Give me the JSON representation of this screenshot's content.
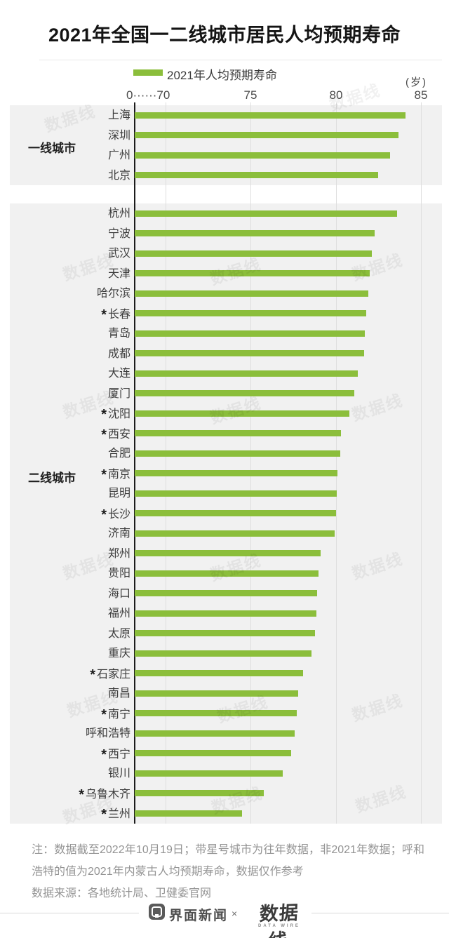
{
  "title": "2021年全国一二线城市居民人均预期寿命",
  "legend": {
    "label": "2021年人均预期寿命",
    "color": "#8BBE3B"
  },
  "axis": {
    "unit_label": "(岁)",
    "tick_labels": [
      "0······70",
      "75",
      "80",
      "85"
    ]
  },
  "watermark_text": "数据线",
  "chart_data": {
    "type": "bar",
    "orientation": "horizontal",
    "title": "2021年全国一二线城市居民人均预期寿命",
    "legend": [
      "2021年人均预期寿命"
    ],
    "unit": "岁",
    "ticks": [
      70,
      75,
      80,
      85
    ],
    "axis_break_label": "0······70",
    "xlim_display": [
      70,
      85
    ],
    "grid": true,
    "bar_color": "#8BBE3B",
    "star_meaning": "带星号城市为往年数据，非2021年数据",
    "groups": [
      {
        "name": "一线城市",
        "cities": [
          {
            "name": "上海",
            "value": 84.1,
            "star": false
          },
          {
            "name": "深圳",
            "value": 83.7,
            "star": false
          },
          {
            "name": "广州",
            "value": 83.2,
            "star": false
          },
          {
            "name": "北京",
            "value": 82.5,
            "star": false
          }
        ]
      },
      {
        "name": "二线城市",
        "cities": [
          {
            "name": "杭州",
            "value": 83.6,
            "star": false
          },
          {
            "name": "宁波",
            "value": 82.3,
            "star": false
          },
          {
            "name": "武汉",
            "value": 82.1,
            "star": false
          },
          {
            "name": "天津",
            "value": 82.0,
            "star": false
          },
          {
            "name": "哈尔滨",
            "value": 81.9,
            "star": false
          },
          {
            "name": "长春",
            "value": 81.8,
            "star": true
          },
          {
            "name": "青岛",
            "value": 81.7,
            "star": false
          },
          {
            "name": "成都",
            "value": 81.65,
            "star": false
          },
          {
            "name": "大连",
            "value": 81.3,
            "star": false
          },
          {
            "name": "厦门",
            "value": 81.1,
            "star": false
          },
          {
            "name": "沈阳",
            "value": 80.8,
            "star": true
          },
          {
            "name": "西安",
            "value": 80.3,
            "star": true
          },
          {
            "name": "合肥",
            "value": 80.25,
            "star": false
          },
          {
            "name": "南京",
            "value": 80.1,
            "star": true
          },
          {
            "name": "昆明",
            "value": 80.05,
            "star": false
          },
          {
            "name": "长沙",
            "value": 80.0,
            "star": true
          },
          {
            "name": "济南",
            "value": 79.95,
            "star": false
          },
          {
            "name": "郑州",
            "value": 79.1,
            "star": false
          },
          {
            "name": "贵阳",
            "value": 79.0,
            "star": false
          },
          {
            "name": "海口",
            "value": 78.9,
            "star": false
          },
          {
            "name": "福州",
            "value": 78.85,
            "star": false
          },
          {
            "name": "太原",
            "value": 78.8,
            "star": false
          },
          {
            "name": "重庆",
            "value": 78.6,
            "star": false
          },
          {
            "name": "石家庄",
            "value": 78.1,
            "star": true
          },
          {
            "name": "南昌",
            "value": 77.8,
            "star": false
          },
          {
            "name": "南宁",
            "value": 77.7,
            "star": true
          },
          {
            "name": "呼和浩特",
            "value": 77.6,
            "star": false
          },
          {
            "name": "西宁",
            "value": 77.4,
            "star": true
          },
          {
            "name": "银川",
            "value": 76.9,
            "star": false
          },
          {
            "name": "乌鲁木齐",
            "value": 75.8,
            "star": true
          },
          {
            "name": "兰州",
            "value": 74.5,
            "star": true
          }
        ]
      }
    ]
  },
  "footer": {
    "note": "注：数据截至2022年10月19日；带星号城市为往年数据，非2021年数据；呼和浩特的值为2021年内蒙古人均预期寿命，数据仅作参考",
    "source": "数据来源：各地统计局、卫健委官网",
    "brand_left": "界面新闻",
    "separator": "×",
    "brand_right": "数据线",
    "brand_right_sub": "DATA WIRE"
  }
}
